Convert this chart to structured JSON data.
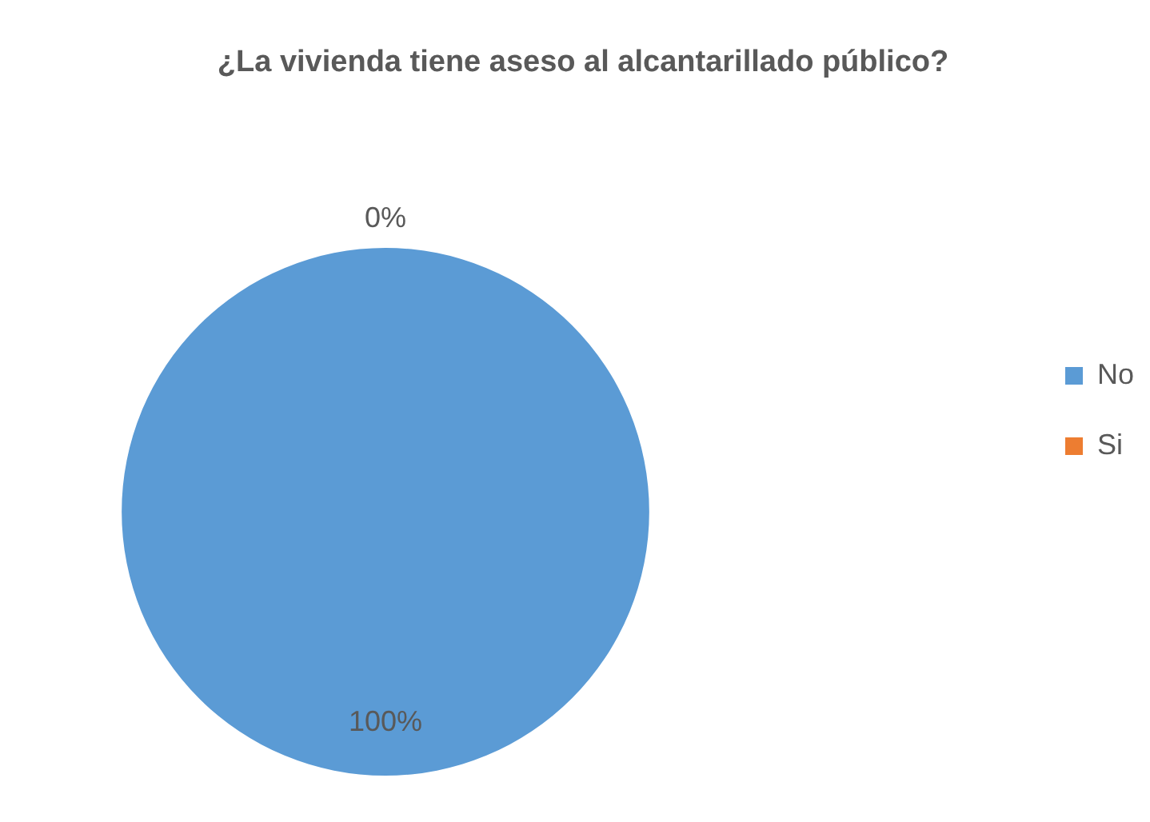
{
  "chart_data": {
    "type": "pie",
    "title": "¿La vivienda tiene aseso al alcantarillado público?",
    "categories": [
      "No",
      "Si"
    ],
    "values": [
      100,
      0
    ],
    "value_labels": [
      "100%",
      "0%"
    ],
    "colors": [
      "#5b9bd5",
      "#ed7d31"
    ],
    "legend": "right"
  }
}
